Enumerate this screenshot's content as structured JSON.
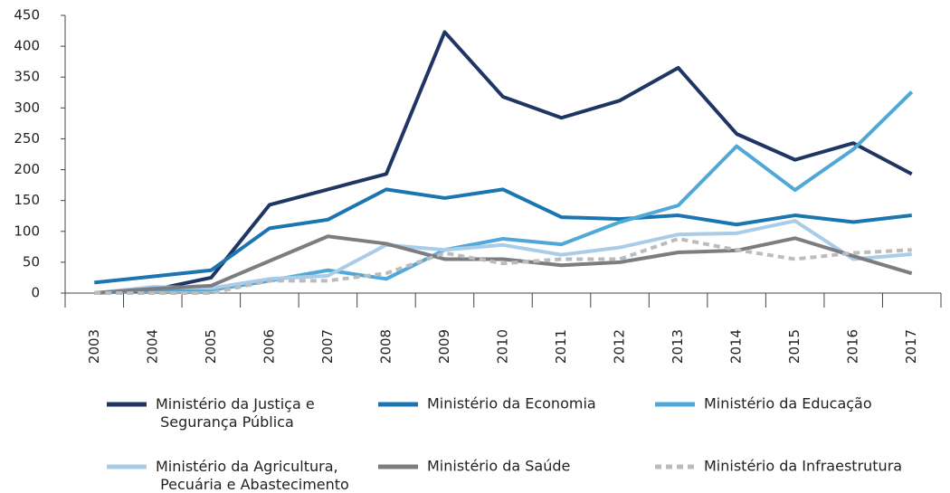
{
  "chart_data": {
    "type": "line",
    "categories": [
      "2003",
      "2004",
      "2005",
      "2006",
      "2007",
      "2008",
      "2009",
      "2010",
      "2011",
      "2012",
      "2013",
      "2014",
      "2015",
      "2016",
      "2017"
    ],
    "ylim": [
      0,
      450
    ],
    "yticks": [
      0,
      50,
      100,
      150,
      200,
      250,
      300,
      350,
      400,
      450
    ],
    "series": [
      {
        "name": "Ministério da Justiça e Segurança Pública",
        "color": "#1f3564",
        "values": [
          0,
          5,
          25,
          143,
          168,
          193,
          423,
          318,
          284,
          312,
          365,
          258,
          216,
          243,
          193
        ]
      },
      {
        "name": "Ministério da Economia",
        "color": "#1a75b0",
        "values": [
          17,
          27,
          37,
          105,
          119,
          168,
          154,
          168,
          123,
          120,
          126,
          111,
          126,
          115,
          126
        ]
      },
      {
        "name": "Ministério da Educação",
        "color": "#4fa8d8",
        "values": [
          0,
          5,
          5,
          20,
          37,
          23,
          70,
          88,
          79,
          115,
          142,
          238,
          167,
          233,
          326
        ]
      },
      {
        "name": "Ministério da Agricultura, Pecuária e Abastecimento",
        "color": "#a9cce9",
        "values": [
          0,
          10,
          8,
          23,
          28,
          78,
          70,
          78,
          62,
          74,
          95,
          97,
          117,
          55,
          63
        ]
      },
      {
        "name": "Ministério da Saúde",
        "color": "#7b7d80",
        "values": [
          0,
          7,
          12,
          52,
          92,
          80,
          55,
          55,
          45,
          50,
          66,
          69,
          89,
          60,
          32
        ]
      },
      {
        "name": "Ministério da Infraestrutura",
        "color": "#bbbcbe",
        "dashed": true,
        "values": [
          0,
          0,
          0,
          20,
          20,
          32,
          65,
          48,
          55,
          55,
          88,
          70,
          55,
          65,
          70
        ]
      }
    ]
  }
}
